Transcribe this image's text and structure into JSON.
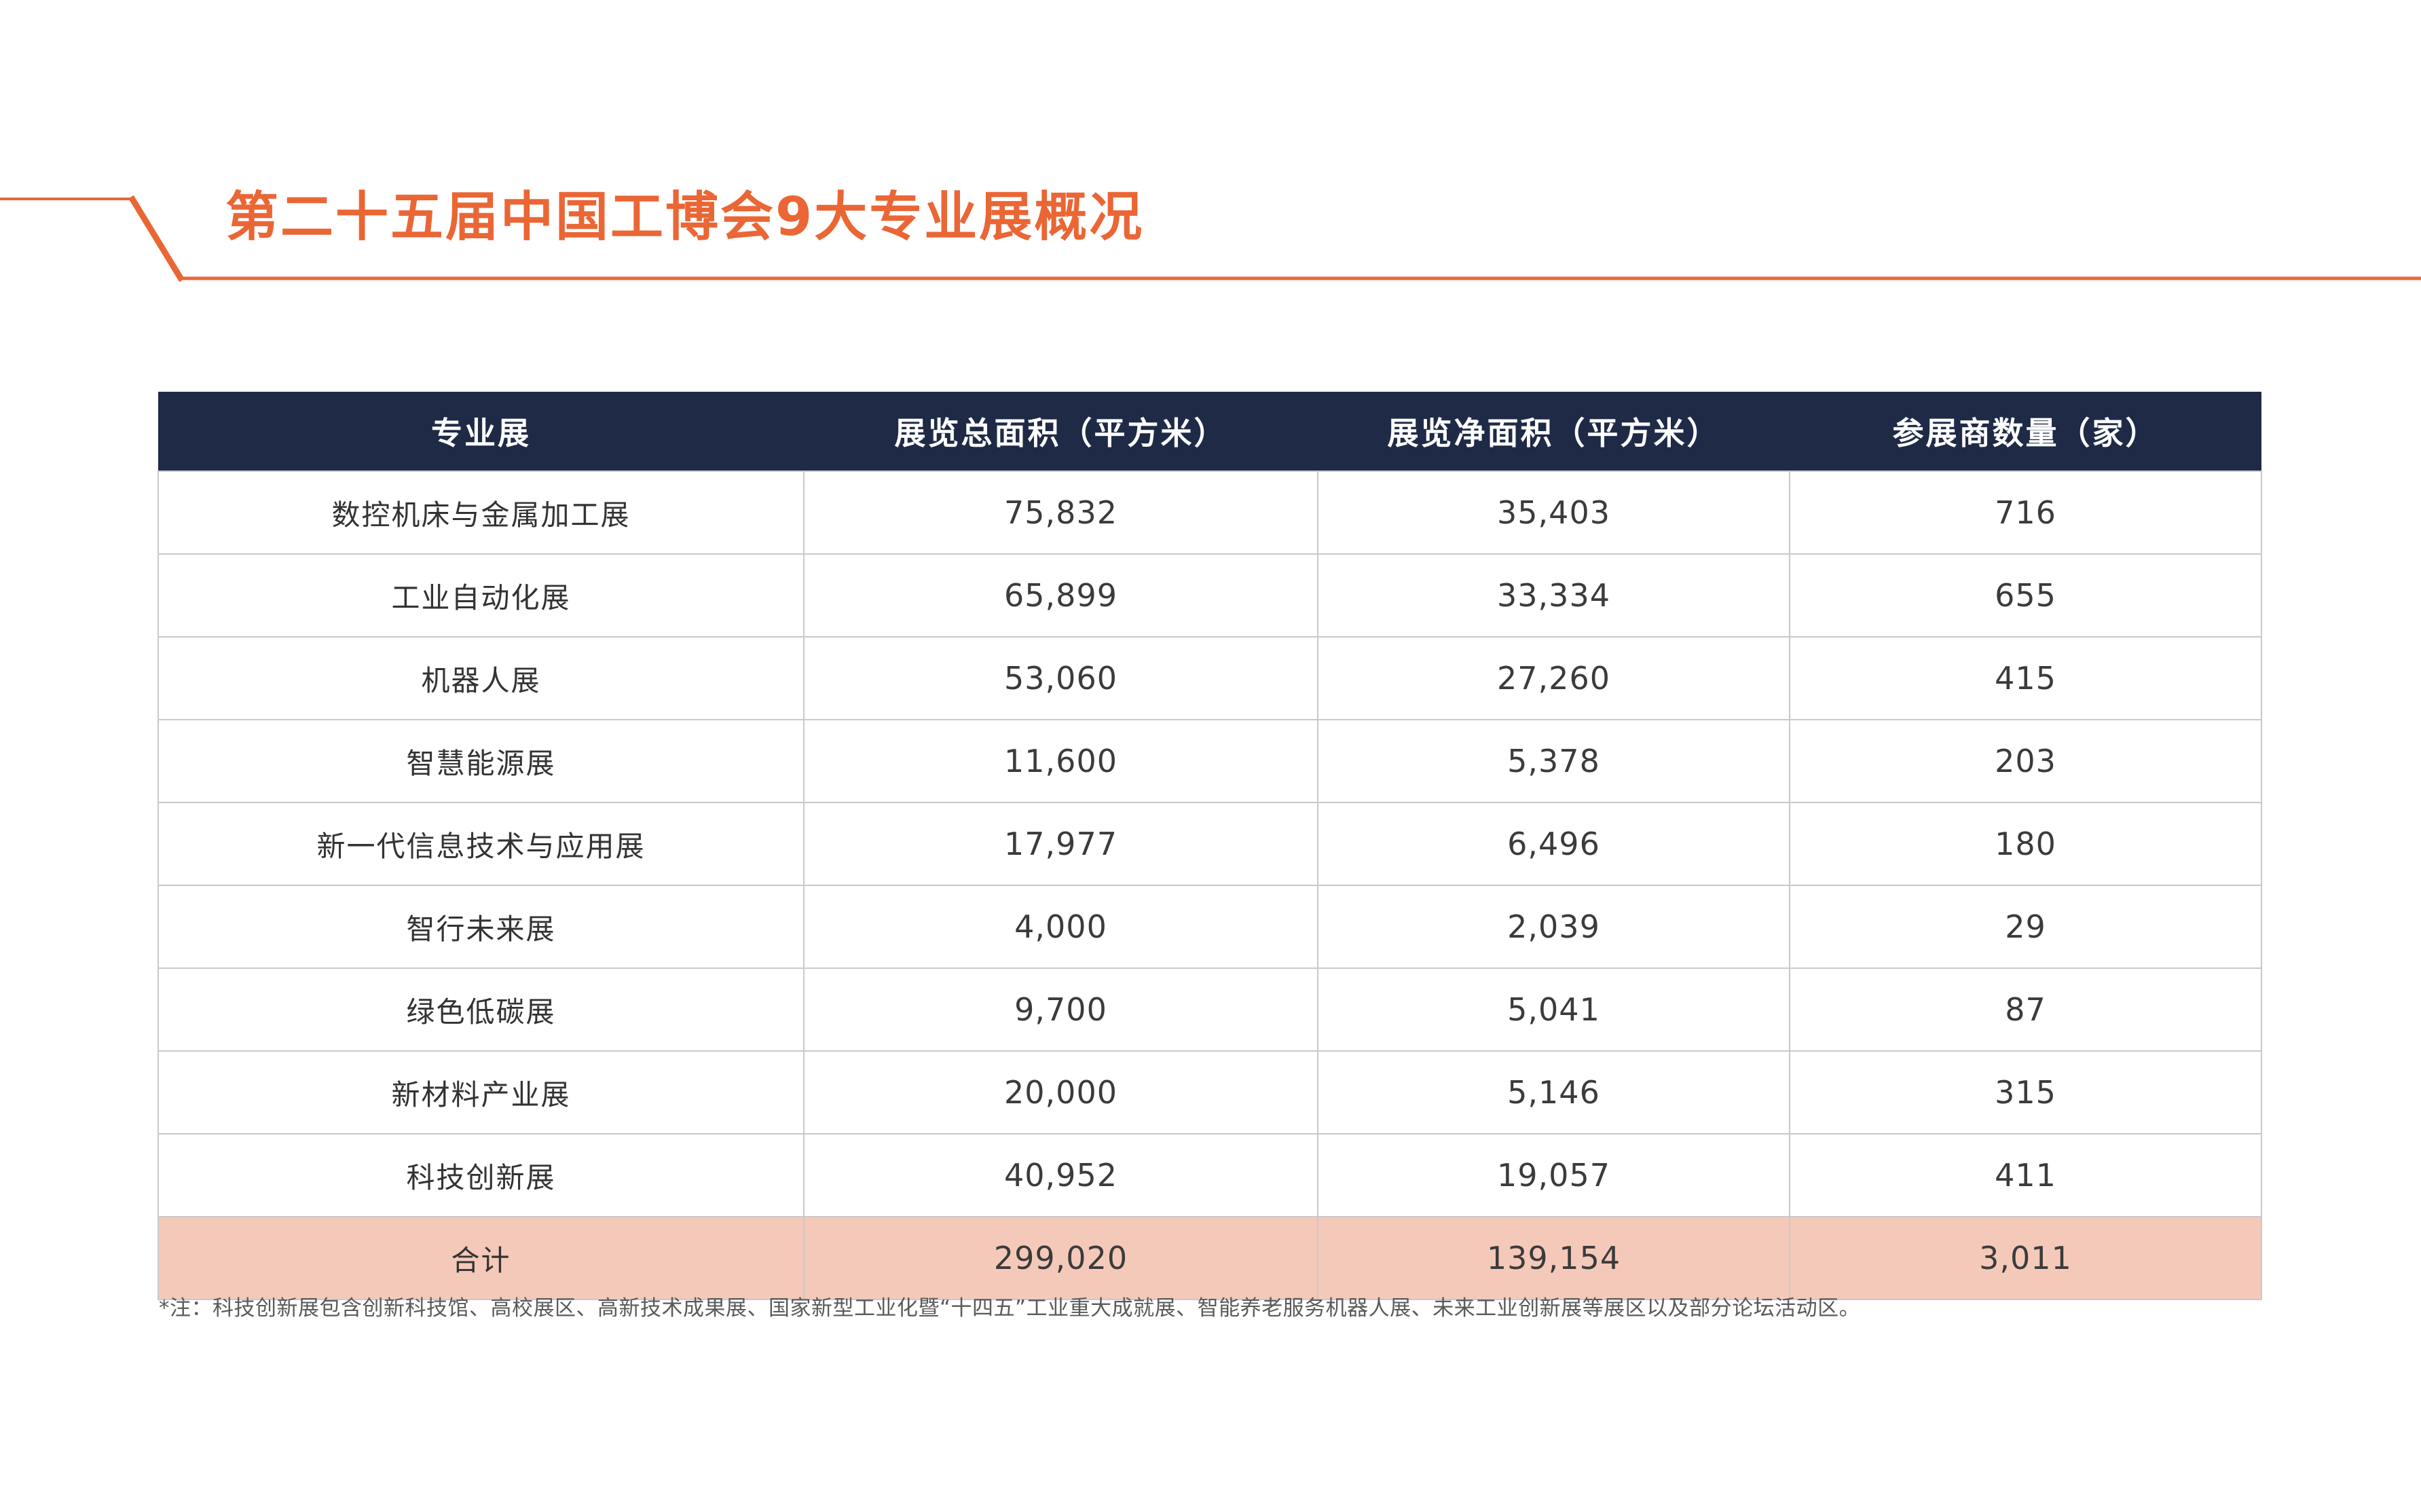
{
  "page": {
    "title": "第二十五届中国工博会9大专业展概况",
    "footnote": "*注：科技创新展包含创新科技馆、高校展区、高新技术成果展、国家新型工业化暨“十四五”工业重大成就展、智能养老服务机器人展、未来工业创新展等展区以及部分论坛活动区。"
  },
  "colors": {
    "accent_orange": "#EA6635",
    "header_navy": "#1F2A47",
    "total_row_pink": "#F5C9BA",
    "grid_gray": "#C9C9C9"
  },
  "table": {
    "columns": [
      "专业展",
      "展览总面积（平方米）",
      "展览净面积（平方米）",
      "参展商数量（家）"
    ],
    "rows": [
      {
        "name": "数控机床与金属加工展",
        "gross_area": "75,832",
        "net_area": "35,403",
        "exhibitors": "716"
      },
      {
        "name": "工业自动化展",
        "gross_area": "65,899",
        "net_area": "33,334",
        "exhibitors": "655"
      },
      {
        "name": "机器人展",
        "gross_area": "53,060",
        "net_area": "27,260",
        "exhibitors": "415"
      },
      {
        "name": "智慧能源展",
        "gross_area": "11,600",
        "net_area": "5,378",
        "exhibitors": "203"
      },
      {
        "name": "新一代信息技术与应用展",
        "gross_area": "17,977",
        "net_area": "6,496",
        "exhibitors": "180"
      },
      {
        "name": "智行未来展",
        "gross_area": "4,000",
        "net_area": "2,039",
        "exhibitors": "29"
      },
      {
        "name": "绿色低碳展",
        "gross_area": "9,700",
        "net_area": "5,041",
        "exhibitors": "87"
      },
      {
        "name": "新材料产业展",
        "gross_area": "20,000",
        "net_area": "5,146",
        "exhibitors": "315"
      },
      {
        "name": "科技创新展",
        "gross_area": "40,952",
        "net_area": "19,057",
        "exhibitors": "411"
      }
    ],
    "total": {
      "name": "合计",
      "gross_area": "299,020",
      "net_area": "139,154",
      "exhibitors": "3,011"
    }
  }
}
